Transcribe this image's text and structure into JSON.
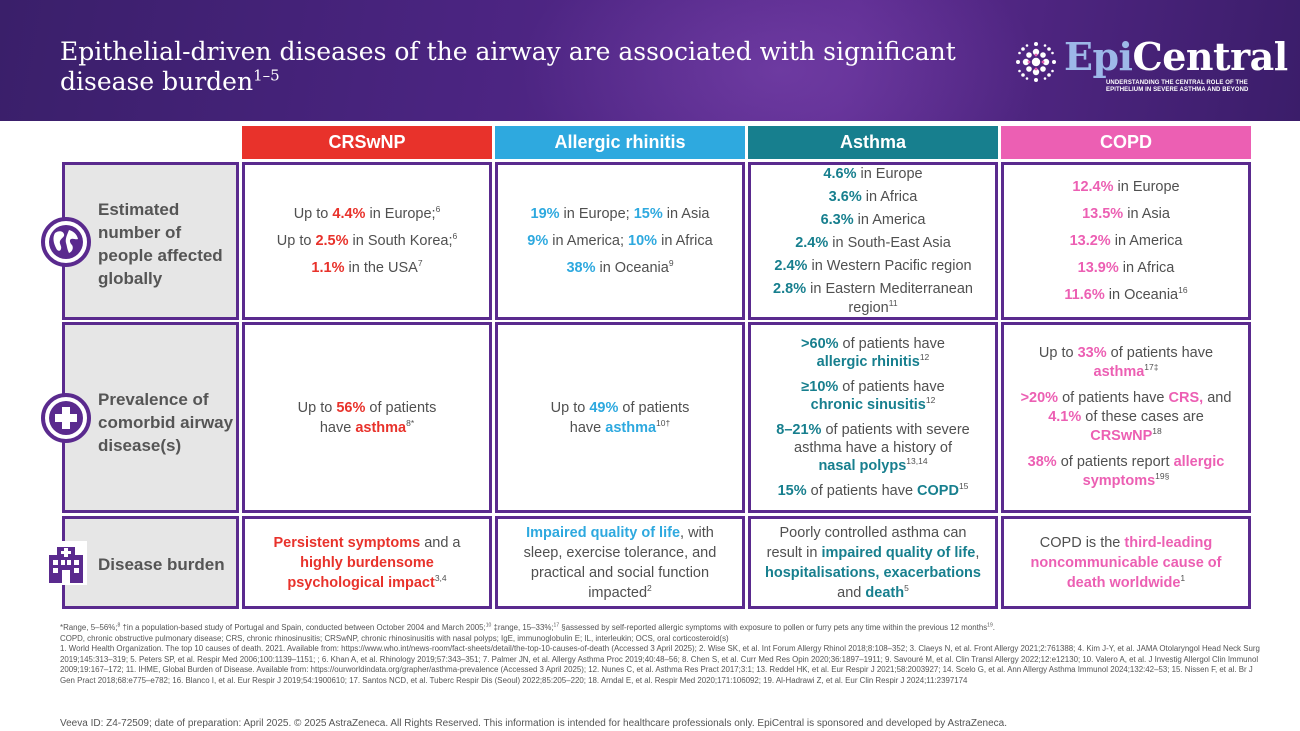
{
  "header": {
    "title_main": "Epithelial-driven diseases of the airway are associated with significant disease burden",
    "title_sup": "1–5",
    "logo_name_a": "Epi",
    "logo_name_b": "Central",
    "logo_tagline": "UNDERSTANDING THE CENTRAL ROLE OF THE EPITHELIUM IN SEVERE ASTHMA AND BEYOND"
  },
  "columns": [
    "CRSwNP",
    "Allergic rhinitis",
    "Asthma",
    "COPD"
  ],
  "colors": {
    "crswnp": "#e8322b",
    "allergic_rhinitis": "#2ea9df",
    "asthma": "#177f8e",
    "copd": "#ec5fb3",
    "frame": "#5a2a8e"
  },
  "rows": {
    "estimated": {
      "label_lines": [
        "Estimated",
        "number of",
        "people affected",
        "globally"
      ],
      "icon": "globe-icon",
      "crswnp": {
        "l1_pre": "Up to ",
        "l1_val": "4.4%",
        "l1_post": " in Europe;",
        "l1_ref": "6",
        "l2_pre": "Up to ",
        "l2_val": "2.5%",
        "l2_post": " in South Korea;",
        "l2_ref": "6",
        "l3_val": "1.1%",
        "l3_post": " in the USA",
        "l3_ref": "7"
      },
      "allergic_rhinitis": {
        "l1_v1": "19%",
        "l1_t1": " in Europe; ",
        "l1_v2": "15%",
        "l1_t2": " in Asia",
        "l2_v1": "9%",
        "l2_t1": " in America; ",
        "l2_v2": "10%",
        "l2_t2": " in Africa",
        "l3_v1": "38%",
        "l3_t1": " in Oceania",
        "l3_ref": "9"
      },
      "asthma": {
        "items": [
          {
            "val": "4.6%",
            "text": " in Europe"
          },
          {
            "val": "3.6%",
            "text": " in Africa"
          },
          {
            "val": "6.3%",
            "text": " in America"
          },
          {
            "val": "2.4%",
            "text": " in South-East Asia"
          },
          {
            "val": "2.4%",
            "text": " in Western Pacific region"
          },
          {
            "val": "2.8%",
            "text": " in Eastern Mediterranean region",
            "ref": "11"
          }
        ]
      },
      "copd": {
        "items": [
          {
            "val": "12.4%",
            "text": " in Europe"
          },
          {
            "val": "13.5%",
            "text": " in Asia"
          },
          {
            "val": "13.2%",
            "text": " in America"
          },
          {
            "val": "13.9%",
            "text": " in Africa"
          },
          {
            "val": "11.6%",
            "text": " in Oceania",
            "ref": "16"
          }
        ]
      }
    },
    "prevalence": {
      "label_lines": [
        "Prevalence of",
        "comorbid airway",
        "disease(s)"
      ],
      "icon": "medical-cross-icon",
      "crswnp": {
        "pre": "Up to ",
        "val": "56%",
        "mid": " of patients have ",
        "hl": "asthma",
        "ref": "8*"
      },
      "allergic_rhinitis": {
        "pre": "Up to ",
        "val": "49%",
        "mid": " of patients have ",
        "hl": "asthma",
        "ref": "10†"
      },
      "asthma": {
        "p1_val": ">60%",
        "p1_text": " of patients have",
        "p1_hl": "allergic rhinitis",
        "p1_ref": "12",
        "p2_val": "≥10%",
        "p2_text": " of patients have",
        "p2_hl": "chronic sinusitis",
        "p2_ref": "12",
        "p3_val": "8–21%",
        "p3_text": " of patients with severe asthma have a history of",
        "p3_hl": "nasal polyps",
        "p3_ref": "13,14",
        "p4_val": "15%",
        "p4_text": " of patients have ",
        "p4_hl": "COPD",
        "p4_ref": "15"
      },
      "copd": {
        "p1_pre": "Up to ",
        "p1_val": "33%",
        "p1_text": " of patients have",
        "p1_hl": "asthma",
        "p1_ref": "17‡",
        "p2_val": ">20%",
        "p2_text": " of patients have ",
        "p2_hl": "CRS,",
        "p2_text2": " and",
        "p2_val2": "4.1%",
        "p2_text3": " of these cases are ",
        "p2_hl2": "CRSwNP",
        "p2_ref": "18",
        "p3_val": "38%",
        "p3_text": " of patients report ",
        "p3_hl": "allergic symptoms",
        "p3_ref": "19§"
      }
    },
    "burden": {
      "label": "Disease burden",
      "icon": "hospital-icon",
      "crswnp": {
        "hl1": "Persistent symptoms",
        "mid": " and a ",
        "hl2": "highly burdensome psychological impact",
        "ref": "3,4"
      },
      "allergic_rhinitis": {
        "hl": "Impaired quality of life",
        "text": ", with sleep, exercise tolerance, and practical and social function impacted",
        "ref": "2"
      },
      "asthma": {
        "pre": "Poorly controlled asthma can result in ",
        "hl1": "impaired quality of life",
        "c": ",",
        "hl2": "hospitalisations, exacerbations",
        "and": " and ",
        "hl3": "death",
        "ref": "5"
      },
      "copd": {
        "pre": "COPD is the ",
        "hl": "third-leading noncommunicable cause of death worldwide",
        "ref": "1"
      }
    }
  },
  "footer": {
    "line1a": "*Range, 5–56%;",
    "sup_a": "8",
    "line1b": " †in a population-based study of Portugal and Spain, conducted between October 2004 and March 2005;",
    "sup_b": "10",
    "line1c": " ‡range, 15–33%;",
    "sup_c": "17",
    "line1d": " §assessed by self-reported allergic symptoms with exposure to pollen or furry pets any time within the previous 12 months",
    "sup_d": "19",
    "line1e": ".",
    "abbrev": "COPD, chronic obstructive pulmonary disease; CRS, chronic rhinosinusitis; CRSwNP, chronic rhinosinusitis with nasal polyps; IgE, immunoglobulin E; IL, interleukin; OCS, oral corticosteroid(s)",
    "refs": "1. World Health Organization. The top 10 causes of death. 2021. Available from: https://www.who.int/news-room/fact-sheets/detail/the-top-10-causes-of-death (Accessed 3 April 2025); 2. Wise SK, et al. Int Forum Allergy Rhinol 2018;8:108–352; 3. Claeys N, et al. Front Allergy 2021;2:761388; 4. Kim J-Y, et al. JAMA Otolaryngol Head Neck Surg 2019;145:313–319; 5. Peters SP, et al. Respir Med 2006;100:1139–1151; ; 6. Khan A, et al. Rhinology 2019;57:343–351; 7. Palmer JN, et al. Allergy Asthma Proc 2019;40:48–56; 8. Chen S, et al. Curr Med Res Opin 2020;36:1897–1911; 9. Savouré M, et al. Clin Transl Allergy 2022;12:e12130; 10. Valero A, et al. J Investig Allergol Clin Immunol 2009;19:167–172; 11. IHME, Global Burden of Disease. Available from: https://ourworldindata.org/grapher/asthma-prevalence (Accessed 3 April 2025); 12. Nunes C, et al. Asthma Res Pract 2017;3:1; 13. Reddel HK, et al. Eur Respir J 2021;58:2003927; 14. Scelo G, et al. Ann Allergy Asthma Immunol 2024;132:42–53; 15. Nissen F, et al. Br J Gen Pract 2018;68:e775–e782; 16. Blanco I, et al. Eur Respir J 2019;54:1900610; 17. Santos NCD, et al. Tuberc Respir Dis (Seoul) 2022;85:205–220; 18. Arndal E, et al. Respir Med 2020;171:106092; 19. Al-Hadrawi Z, et al. Eur Clin Respir J 2024;11:2397174",
    "veeva": "Veeva ID: Z4-72509; date of preparation: April 2025. © 2025 AstraZeneca. All Rights Reserved. This information is intended for healthcare professionals only. EpiCentral is sponsored and developed by AstraZeneca."
  }
}
